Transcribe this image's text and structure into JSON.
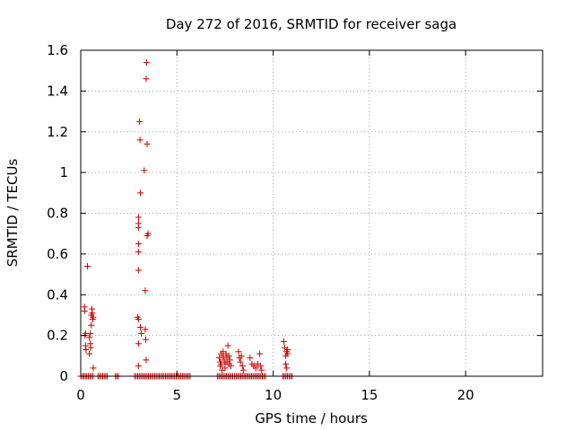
{
  "chart_data": {
    "type": "scatter",
    "title": "Day 272 of 2016, SRMTID for receiver saga",
    "xlabel": "GPS time / hours",
    "ylabel": "SRMTID / TECUs",
    "xlim": [
      0,
      24
    ],
    "ylim": [
      0,
      1.6
    ],
    "xticks": [
      0,
      5,
      10,
      15,
      20
    ],
    "yticks": [
      0,
      0.2,
      0.4,
      0.6,
      0.8,
      1,
      1.2,
      1.4,
      1.6
    ],
    "xtick_labels": [
      "0",
      "5",
      "10",
      "15",
      "20"
    ],
    "ytick_labels": [
      "0",
      "0.2",
      "0.4",
      "0.6",
      "0.8",
      "1",
      "1.2",
      "1.4",
      "1.6"
    ],
    "grid": true,
    "marker": "+",
    "marker_color": "#cc0000",
    "series": [
      {
        "name": "SRMTID",
        "points": [
          [
            0.2,
            0.34
          ],
          [
            0.2,
            0.32
          ],
          [
            0.22,
            0.2
          ],
          [
            0.25,
            0.21
          ],
          [
            0.25,
            0.15
          ],
          [
            0.27,
            0.13
          ],
          [
            0.35,
            0.54
          ],
          [
            0.45,
            0.19
          ],
          [
            0.45,
            0.11
          ],
          [
            0.5,
            0.21
          ],
          [
            0.5,
            0.16
          ],
          [
            0.52,
            0.14
          ],
          [
            0.55,
            0.3
          ],
          [
            0.55,
            0.25
          ],
          [
            0.58,
            0.33
          ],
          [
            0.6,
            0.31
          ],
          [
            0.62,
            0.28
          ],
          [
            0.65,
            0.29
          ],
          [
            0.65,
            0.04
          ],
          [
            2.95,
            0.29
          ],
          [
            3.0,
            0.78
          ],
          [
            3.0,
            0.75
          ],
          [
            3.0,
            0.73
          ],
          [
            3.0,
            0.65
          ],
          [
            3.0,
            0.61
          ],
          [
            3.0,
            0.52
          ],
          [
            3.0,
            0.28
          ],
          [
            3.0,
            0.16
          ],
          [
            3.0,
            0.05
          ],
          [
            3.05,
            1.25
          ],
          [
            3.08,
            1.16
          ],
          [
            3.1,
            0.9
          ],
          [
            3.1,
            0.24
          ],
          [
            3.15,
            0.21
          ],
          [
            3.3,
            1.01
          ],
          [
            3.35,
            0.42
          ],
          [
            3.35,
            0.23
          ],
          [
            3.38,
            0.18
          ],
          [
            3.4,
            1.46
          ],
          [
            3.42,
            1.54
          ],
          [
            3.45,
            1.14
          ],
          [
            3.45,
            0.69
          ],
          [
            3.5,
            0.7
          ],
          [
            3.4,
            0.08
          ],
          [
            7.2,
            0.09
          ],
          [
            7.25,
            0.07
          ],
          [
            7.25,
            0.05
          ],
          [
            7.3,
            0.11
          ],
          [
            7.3,
            0.06
          ],
          [
            7.35,
            0.03
          ],
          [
            7.4,
            0.12
          ],
          [
            7.4,
            0.1
          ],
          [
            7.45,
            0.08
          ],
          [
            7.5,
            0.06
          ],
          [
            7.5,
            0.04
          ],
          [
            7.55,
            0.11
          ],
          [
            7.6,
            0.09
          ],
          [
            7.6,
            0.07
          ],
          [
            7.65,
            0.15
          ],
          [
            7.7,
            0.1
          ],
          [
            7.7,
            0.06
          ],
          [
            7.75,
            0.08
          ],
          [
            7.8,
            0.05
          ],
          [
            8.2,
            0.12
          ],
          [
            8.25,
            0.09
          ],
          [
            8.3,
            0.07
          ],
          [
            8.35,
            0.1
          ],
          [
            8.4,
            0.05
          ],
          [
            8.45,
            0.03
          ],
          [
            8.8,
            0.09
          ],
          [
            8.9,
            0.06
          ],
          [
            9.0,
            0.05
          ],
          [
            9.1,
            0.04
          ],
          [
            9.2,
            0.06
          ],
          [
            9.3,
            0.11
          ],
          [
            9.35,
            0.05
          ],
          [
            9.4,
            0.03
          ],
          [
            10.55,
            0.17
          ],
          [
            10.6,
            0.14
          ],
          [
            10.65,
            0.1
          ],
          [
            10.65,
            0.06
          ],
          [
            10.7,
            0.12
          ],
          [
            10.7,
            0.04
          ],
          [
            10.75,
            0.13
          ],
          [
            10.75,
            0.11
          ]
        ],
        "zero_ranges": [
          [
            0.0,
            0.7
          ],
          [
            0.9,
            1.4
          ],
          [
            1.8,
            2.0
          ],
          [
            2.8,
            5.7
          ],
          [
            7.1,
            7.9
          ],
          [
            8.0,
            9.6
          ],
          [
            10.5,
            11.0
          ]
        ],
        "zero_step": 0.08
      }
    ]
  }
}
